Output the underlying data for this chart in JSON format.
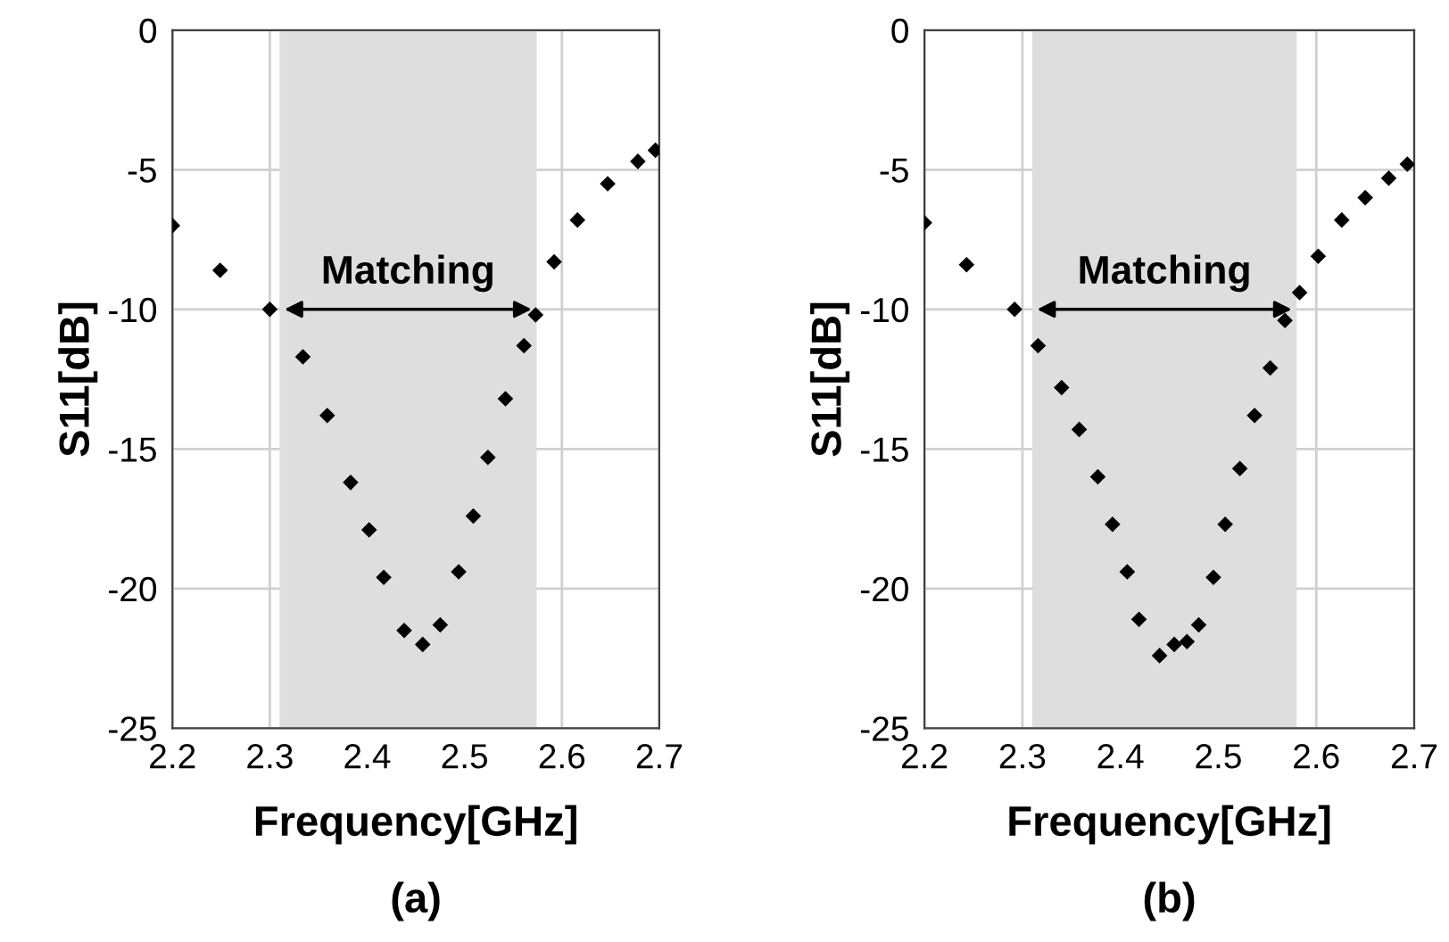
{
  "chart_data": [
    {
      "type": "scatter",
      "xlabel": "Frequency[GHz]",
      "ylabel": "S11[dB]",
      "marker": "diamond",
      "grid": true,
      "xlim": [
        2.2,
        2.7
      ],
      "ylim": [
        -25,
        0
      ],
      "xticks": [
        2.2,
        2.3,
        2.4,
        2.5,
        2.6,
        2.7
      ],
      "yticks": [
        -25,
        -20,
        -15,
        -10,
        -5,
        0
      ],
      "bands": [
        {
          "axis": "x",
          "from": 2.31,
          "to": 2.574,
          "color": "#dedede",
          "label": "Matching"
        }
      ],
      "annotations": [
        "(a)"
      ],
      "series": [
        {
          "color": "#000000",
          "x": [
            2.2,
            2.249,
            2.3,
            2.334,
            2.359,
            2.383,
            2.402,
            2.417,
            2.438,
            2.457,
            2.475,
            2.494,
            2.509,
            2.524,
            2.542,
            2.561,
            2.573,
            2.592,
            2.616,
            2.647,
            2.678,
            2.696
          ],
          "values": [
            -7.0,
            -8.6,
            -10.0,
            -11.7,
            -13.8,
            -16.2,
            -17.9,
            -19.6,
            -21.5,
            -22.0,
            -21.3,
            -19.4,
            -17.4,
            -15.3,
            -13.2,
            -11.3,
            -10.2,
            -8.3,
            -6.8,
            -5.5,
            -4.7,
            -4.3
          ]
        }
      ]
    },
    {
      "type": "scatter",
      "xlabel": "Frequency[GHz]",
      "ylabel": "S11[dB]",
      "marker": "diamond",
      "grid": true,
      "xlim": [
        2.2,
        2.7
      ],
      "ylim": [
        -25,
        0
      ],
      "xticks": [
        2.2,
        2.3,
        2.4,
        2.5,
        2.6,
        2.7
      ],
      "yticks": [
        -25,
        -20,
        -15,
        -10,
        -5,
        0
      ],
      "bands": [
        {
          "axis": "x",
          "from": 2.31,
          "to": 2.58,
          "color": "#dedede",
          "label": "Matching"
        }
      ],
      "annotations": [
        "(b)"
      ],
      "series": [
        {
          "color": "#000000",
          "x": [
            2.2,
            2.243,
            2.292,
            2.316,
            2.34,
            2.358,
            2.377,
            2.392,
            2.407,
            2.419,
            2.44,
            2.455,
            2.468,
            2.48,
            2.495,
            2.507,
            2.522,
            2.537,
            2.553,
            2.568,
            2.583,
            2.602,
            2.626,
            2.65,
            2.674,
            2.693
          ],
          "values": [
            -6.9,
            -8.4,
            -10.0,
            -11.3,
            -12.8,
            -14.3,
            -16.0,
            -17.7,
            -19.4,
            -21.1,
            -22.4,
            -22.0,
            -21.9,
            -21.3,
            -19.6,
            -17.7,
            -15.7,
            -13.8,
            -12.1,
            -10.4,
            -9.4,
            -8.1,
            -6.8,
            -6.0,
            -5.3,
            -4.8
          ]
        }
      ]
    }
  ]
}
